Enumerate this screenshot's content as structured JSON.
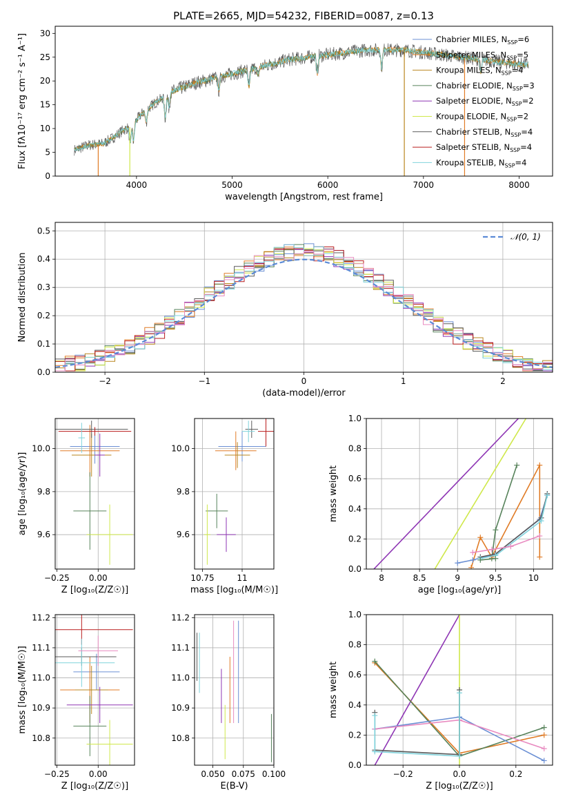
{
  "figure": {
    "title": "PLATE=2665, MJD=54232, FIBERID=0087, z=0.13"
  },
  "colors": {
    "Chabrier MILES": "#6a8fd4",
    "Salpeter MILES": "#e07b25",
    "Kroupa MILES": "#b9861e",
    "Chabrier ELODIE": "#56825a",
    "Salpeter ELODIE": "#8e35b4",
    "Kroupa ELODIE": "#cfe84a",
    "Chabrier STELIB": "#5a5a5a",
    "Salpeter STELIB": "#b91c1c",
    "Kroupa STELIB": "#7fd3dc",
    "pink": "#e88ac0",
    "normal": "#5b8ad6",
    "grid": "#b0b0b0"
  },
  "chart_data": [
    {
      "id": "spectrum",
      "type": "line",
      "xlabel": "wavelength [Angstrom, rest frame]",
      "ylabel": "Flux [fλ10⁻¹⁷ erg cm⁻² s⁻¹ A⁻¹]",
      "xlim": [
        3150,
        8350
      ],
      "ylim": [
        0,
        31.5
      ],
      "xticks": [
        4000,
        5000,
        6000,
        7000,
        8000
      ],
      "yticks": [
        0,
        5,
        10,
        15,
        20,
        25,
        30
      ],
      "grid": false,
      "legend_position": "top-right",
      "legend": [
        "Chabrier MILES, N_SSP=6",
        "Salpeter MILES, N_SSP=5",
        "Kroupa MILES, N_SSP=4",
        "Chabrier ELODIE, N_SSP=3",
        "Salpeter ELODIE, N_SSP=2",
        "Kroupa ELODIE, N_SSP=2",
        "Chabrier STELIB, N_SSP=4",
        "Salpeter STELIB, N_SSP=4",
        "Kroupa STELIB, N_SSP=4"
      ],
      "continuum": [
        [
          3350,
          5.5
        ],
        [
          3500,
          6.5
        ],
        [
          3650,
          6.8
        ],
        [
          3750,
          8
        ],
        [
          3850,
          9.5
        ],
        [
          3950,
          10.5
        ],
        [
          4050,
          13
        ],
        [
          4200,
          15.5
        ],
        [
          4400,
          18
        ],
        [
          4600,
          19.5
        ],
        [
          4800,
          20.5
        ],
        [
          5000,
          21.5
        ],
        [
          5200,
          22.5
        ],
        [
          5400,
          23.5
        ],
        [
          5600,
          24.5
        ],
        [
          5800,
          25
        ],
        [
          6000,
          25.5
        ],
        [
          6200,
          26
        ],
        [
          6400,
          26.5
        ],
        [
          6600,
          26.5
        ],
        [
          6800,
          26.5
        ],
        [
          7000,
          26
        ],
        [
          7200,
          25.5
        ],
        [
          7400,
          25
        ],
        [
          7600,
          24.5
        ],
        [
          7800,
          24
        ],
        [
          8000,
          23.5
        ],
        [
          8100,
          23.5
        ]
      ],
      "absorption_lines": [
        [
          3934,
          4
        ],
        [
          3969,
          4
        ],
        [
          4102,
          3
        ],
        [
          4300,
          5
        ],
        [
          4340,
          3
        ],
        [
          4861,
          3
        ],
        [
          5175,
          4
        ],
        [
          5270,
          2
        ],
        [
          5890,
          4
        ],
        [
          6563,
          4
        ],
        [
          7600,
          3
        ]
      ],
      "dropouts": [
        [
          3600,
          0
        ],
        [
          3930,
          0
        ],
        [
          6800,
          0
        ],
        [
          7430,
          0
        ]
      ]
    },
    {
      "id": "residuals",
      "type": "bar",
      "xlabel": "(data-model)/error",
      "ylabel": "Normed distribution",
      "xlim": [
        -2.5,
        2.5
      ],
      "ylim": [
        0,
        0.53
      ],
      "xticks": [
        -2,
        -1,
        0,
        1,
        2
      ],
      "yticks": [
        0.0,
        0.1,
        0.2,
        0.3,
        0.4,
        0.5
      ],
      "grid": true,
      "legend_position": "top-right",
      "legend": [
        "𝒩(0, 1)"
      ],
      "bins": 50,
      "bin_range": [
        -2.5,
        2.5
      ]
    },
    {
      "id": "age_vs_Z",
      "type": "scatter",
      "xlabel": "Z [log₁₀(Z/Z☉)]",
      "ylabel": "age  [log₁₀(age/yr)]",
      "xlim": [
        -0.26,
        0.22
      ],
      "ylim": [
        9.44,
        10.14
      ],
      "xticks": [
        -0.25,
        0.0
      ],
      "xticklabels": [
        "−0.25",
        "0.00"
      ],
      "yticks": [
        9.6,
        9.8,
        10.0
      ],
      "grid": true,
      "points": [
        {
          "model": "Chabrier MILES",
          "x": -0.02,
          "xerr": 0.15,
          "y": 10.01,
          "yerr": 0.08
        },
        {
          "model": "Salpeter MILES",
          "x": -0.05,
          "xerr": 0.18,
          "y": 9.99,
          "yerr": 0.12
        },
        {
          "model": "Kroupa MILES",
          "x": -0.04,
          "xerr": 0.12,
          "y": 9.97,
          "yerr": 0.1
        },
        {
          "model": "Chabrier ELODIE",
          "x": -0.05,
          "xerr": 0.1,
          "y": 9.71,
          "yerr": 0.18
        },
        {
          "model": "Salpeter ELODIE",
          "x": 0.01,
          "xerr": 0.03,
          "y": 9.97,
          "yerr": 0.1
        },
        {
          "model": "Kroupa ELODIE",
          "x": 0.07,
          "xerr": 0.14,
          "y": 9.6,
          "yerr": 0.14
        },
        {
          "model": "Chabrier STELIB",
          "x": -0.04,
          "xerr": 0.22,
          "y": 10.09,
          "yerr": 0.04
        },
        {
          "model": "Salpeter STELIB",
          "x": -0.02,
          "xerr": 0.22,
          "y": 10.08,
          "yerr": 0.02
        },
        {
          "model": "Kroupa STELIB",
          "x": -0.1,
          "xerr": 0.02,
          "y": 10.05,
          "yerr": 0.07
        }
      ]
    },
    {
      "id": "age_vs_mass",
      "type": "scatter",
      "xlabel": "mass [log₁₀(M/M☉)]",
      "ylabel": "",
      "xlim": [
        10.7,
        11.2
      ],
      "ylim": [
        9.44,
        10.14
      ],
      "xticks": [
        10.75,
        11.0
      ],
      "yticks": [
        9.6,
        9.8,
        10.0
      ],
      "grid": true,
      "points": [
        {
          "model": "Chabrier MILES",
          "x": 11.0,
          "xerr": 0.15,
          "y": 10.01,
          "yerr": 0.07
        },
        {
          "model": "Salpeter MILES",
          "x": 10.96,
          "xerr": 0.13,
          "y": 9.99,
          "yerr": 0.09
        },
        {
          "model": "Kroupa MILES",
          "x": 10.97,
          "xerr": 0.08,
          "y": 9.97,
          "yerr": 0.06
        },
        {
          "model": "Chabrier ELODIE",
          "x": 10.84,
          "xerr": 0.07,
          "y": 9.71,
          "yerr": 0.08
        },
        {
          "model": "Salpeter ELODIE",
          "x": 10.9,
          "xerr": 0.06,
          "y": 9.6,
          "yerr": 0.08
        },
        {
          "model": "Kroupa ELODIE",
          "x": 10.78,
          "xerr": 0.02,
          "y": 9.6,
          "yerr": 0.14
        },
        {
          "model": "Chabrier STELIB",
          "x": 11.06,
          "xerr": 0.04,
          "y": 10.09,
          "yerr": 0.04
        },
        {
          "model": "Salpeter STELIB",
          "x": 11.15,
          "xerr": 0.05,
          "y": 10.08,
          "yerr": 0.07
        },
        {
          "model": "Kroupa STELIB",
          "x": 11.04,
          "xerr": 0.04,
          "y": 10.08,
          "yerr": 0.05
        }
      ]
    },
    {
      "id": "mass_weight_vs_age",
      "type": "line",
      "xlabel": "age  [log₁₀(age/yr)]",
      "ylabel": "mass weight",
      "xlim": [
        7.8,
        10.25
      ],
      "ylim": [
        0,
        1
      ],
      "xticks": [
        8.0,
        8.5,
        9.0,
        9.5,
        10.0
      ],
      "yticks": [
        0.0,
        0.2,
        0.4,
        0.6,
        0.8,
        1.0
      ],
      "grid": true,
      "series": [
        {
          "model": "Salpeter ELODIE",
          "x": [
            7.9,
            9.8
          ],
          "y": [
            0.0,
            1.0
          ]
        },
        {
          "model": "Kroupa ELODIE",
          "x": [
            8.7,
            9.9
          ],
          "y": [
            0.0,
            1.0
          ]
        },
        {
          "model": "Chabrier ELODIE",
          "x": [
            9.45,
            9.5,
            9.78
          ],
          "y": [
            0.07,
            0.26,
            0.69
          ]
        },
        {
          "model": "Salpeter MILES",
          "x": [
            9.18,
            9.3,
            9.45,
            10.08,
            10.08
          ],
          "y": [
            0.01,
            0.21,
            0.08,
            0.69,
            0.08
          ]
        },
        {
          "model": "Chabrier MILES",
          "x": [
            9.0,
            9.2,
            9.5,
            10.08,
            10.18
          ],
          "y": [
            0.04,
            0.06,
            0.1,
            0.33,
            0.49
          ]
        },
        {
          "model": "Chabrier STELIB",
          "x": [
            9.3,
            9.5,
            10.1,
            10.18
          ],
          "y": [
            0.08,
            0.1,
            0.34,
            0.5
          ]
        },
        {
          "model": "Kroupa STELIB",
          "x": [
            9.3,
            9.5,
            10.1,
            10.18
          ],
          "y": [
            0.07,
            0.09,
            0.32,
            0.49
          ]
        },
        {
          "model": "pink",
          "x": [
            9.2,
            9.45,
            9.7,
            10.08
          ],
          "y": [
            0.11,
            0.13,
            0.15,
            0.22
          ]
        },
        {
          "model": "Chabrier ELODIE",
          "x": [
            9.3,
            9.5
          ],
          "y": [
            0.06,
            0.07
          ]
        }
      ]
    },
    {
      "id": "mass_vs_Z",
      "type": "scatter",
      "xlabel": "Z [log₁₀(Z/Z☉)]",
      "ylabel": "mass [log₁₀(M/M☉)]",
      "xlim": [
        -0.26,
        0.22
      ],
      "ylim": [
        10.71,
        11.21
      ],
      "xticks": [
        -0.25,
        0.0
      ],
      "xticklabels": [
        "−0.25",
        "0.00"
      ],
      "yticks": [
        10.8,
        10.9,
        11.0,
        11.1,
        11.2
      ],
      "grid": true,
      "points": [
        {
          "model": "Chabrier MILES",
          "x": -0.01,
          "xerr": 0.14,
          "y": 11.02,
          "yerr": 0.06
        },
        {
          "model": "Salpeter MILES",
          "x": -0.05,
          "xerr": 0.18,
          "y": 10.96,
          "yerr": 0.11
        },
        {
          "model": "Kroupa MILES",
          "x": -0.04,
          "xerr": 0.1,
          "y": 10.96,
          "yerr": 0.08
        },
        {
          "model": "Chabrier ELODIE",
          "x": -0.05,
          "xerr": 0.1,
          "y": 10.84,
          "yerr": 0.1
        },
        {
          "model": "Salpeter ELODIE",
          "x": 0.01,
          "xerr": 0.2,
          "y": 10.91,
          "yerr": 0.06
        },
        {
          "model": "Kroupa ELODIE",
          "x": 0.07,
          "xerr": 0.14,
          "y": 10.78,
          "yerr": 0.08
        },
        {
          "model": "Chabrier STELIB",
          "x": -0.1,
          "xerr": 0.21,
          "y": 11.07,
          "yerr": 0.03
        },
        {
          "model": "Salpeter STELIB",
          "x": -0.1,
          "xerr": 0.31,
          "y": 11.16,
          "yerr": 0.05
        },
        {
          "model": "Kroupa STELIB",
          "x": -0.1,
          "xerr": 0.2,
          "y": 11.05,
          "yerr": 0.08
        },
        {
          "model": "pink",
          "x": 0.0,
          "xerr": 0.12,
          "y": 11.09,
          "yerr": 0.05
        }
      ]
    },
    {
      "id": "mass_vs_EBV",
      "type": "scatter",
      "xlabel": "E(B-V)",
      "ylabel": "",
      "xlim": [
        0.035,
        0.1
      ],
      "ylim": [
        10.71,
        11.21
      ],
      "xticks": [
        0.05,
        0.075,
        0.1
      ],
      "xticklabels": [
        "0.050",
        "0.075",
        "0.100"
      ],
      "yticks": [
        10.8,
        10.9,
        11.0,
        11.1,
        11.2
      ],
      "grid": true,
      "points": [
        {
          "model": "Chabrier STELIB",
          "x": 0.037,
          "y": 11.07,
          "yerr": 0.08
        },
        {
          "model": "Kroupa STELIB",
          "x": 0.039,
          "y": 11.05,
          "yerr": 0.1
        },
        {
          "model": "Salpeter ELODIE",
          "x": 0.057,
          "y": 10.94,
          "yerr": 0.09
        },
        {
          "model": "Kroupa ELODIE",
          "x": 0.06,
          "y": 10.82,
          "yerr": 0.09
        },
        {
          "model": "Salpeter MILES",
          "x": 0.064,
          "y": 10.96,
          "yerr": 0.11
        },
        {
          "model": "pink",
          "x": 0.067,
          "y": 11.02,
          "yerr": 0.17
        },
        {
          "model": "Chabrier MILES",
          "x": 0.071,
          "y": 11.02,
          "yerr": 0.17
        },
        {
          "model": "Chabrier ELODIE",
          "x": 0.098,
          "y": 10.8,
          "yerr": 0.08
        }
      ]
    },
    {
      "id": "mass_weight_vs_Z",
      "type": "line",
      "xlabel": "Z [log₁₀(Z/Z☉)]",
      "ylabel": "mass weight",
      "xlim": [
        -0.33,
        0.33
      ],
      "ylim": [
        0,
        1
      ],
      "xticks": [
        -0.2,
        0.0,
        0.2
      ],
      "xticklabels": [
        "−0.2",
        "0.0",
        "0.2"
      ],
      "yticks": [
        0.0,
        0.2,
        0.4,
        0.6,
        0.8,
        1.0
      ],
      "grid": true,
      "series": [
        {
          "model": "Salpeter ELODIE",
          "x": [
            -0.3,
            0.0
          ],
          "y": [
            0.0,
            1.0
          ]
        },
        {
          "model": "Kroupa ELODIE",
          "x": [
            0.0,
            0.0
          ],
          "y": [
            0.0,
            1.0
          ]
        },
        {
          "model": "Salpeter MILES",
          "x": [
            -0.3,
            0.0,
            0.3
          ],
          "y": [
            0.68,
            0.08,
            0.2
          ]
        },
        {
          "model": "Chabrier ELODIE",
          "x": [
            -0.3,
            0.0,
            0.3
          ],
          "y": [
            0.69,
            0.06,
            0.25
          ]
        },
        {
          "model": "Chabrier MILES",
          "x": [
            -0.3,
            0.0,
            0.3
          ],
          "y": [
            0.24,
            0.32,
            0.03
          ]
        },
        {
          "model": "pink",
          "x": [
            -0.3,
            0.0,
            0.3
          ],
          "y": [
            0.24,
            0.3,
            0.11
          ]
        },
        {
          "model": "Chabrier STELIB",
          "x": [
            -0.3,
            -0.3,
            0.0,
            0.0
          ],
          "y": [
            0.35,
            0.1,
            0.07,
            0.5
          ]
        },
        {
          "model": "Kroupa STELIB",
          "x": [
            -0.3,
            -0.3,
            0.0,
            0.0
          ],
          "y": [
            0.33,
            0.09,
            0.06,
            0.48
          ]
        }
      ]
    }
  ]
}
